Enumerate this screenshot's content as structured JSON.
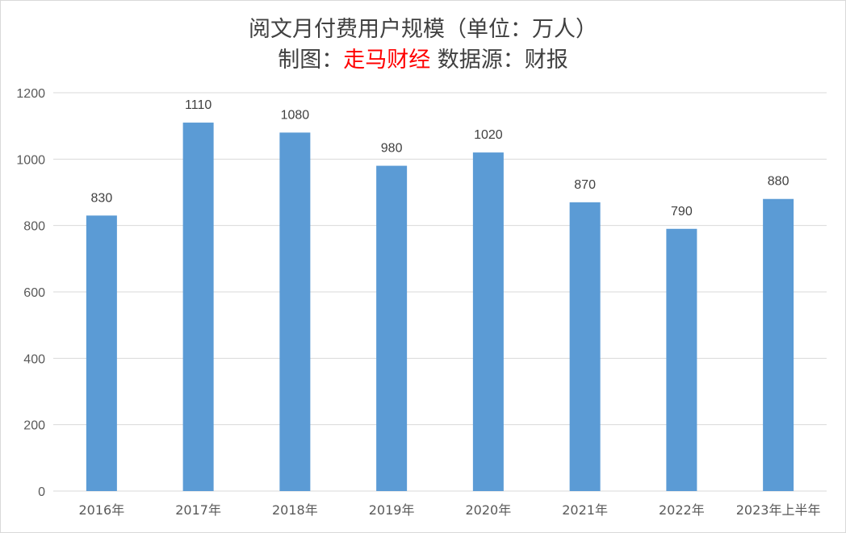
{
  "title": {
    "line1": "阅文月付费用户规模（单位：万人）",
    "line2_prefix": "制图：",
    "line2_brand": "走马财经",
    "line2_suffix": " 数据源：财报"
  },
  "colors": {
    "bar": "#5b9bd5",
    "grid": "#d9d9d9",
    "brand": "#ff0000"
  },
  "chart_data": {
    "type": "bar",
    "categories": [
      "2016年",
      "2017年",
      "2018年",
      "2019年",
      "2020年",
      "2021年",
      "2022年",
      "2023年上半年"
    ],
    "values": [
      830,
      1110,
      1080,
      980,
      1020,
      870,
      790,
      880
    ],
    "data_labels": [
      "830",
      "1110",
      "1080",
      "980",
      "1020",
      "870",
      "790",
      "880"
    ],
    "title": "阅文月付费用户规模（单位：万人）",
    "xlabel": "",
    "ylabel": "",
    "ylim": [
      0,
      1200
    ],
    "yticks": [
      0,
      200,
      400,
      600,
      800,
      1000,
      1200
    ],
    "grid": true,
    "legend": "none"
  }
}
